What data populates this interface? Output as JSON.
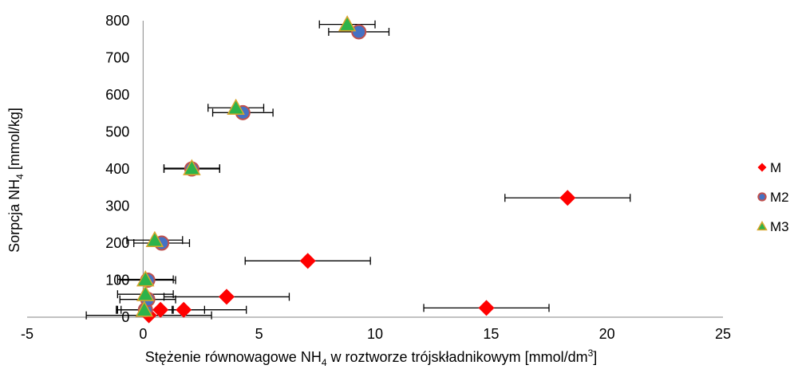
{
  "chart_data": {
    "type": "scatter",
    "title": "",
    "xlabel": "Stężenie równowagowe NH",
    "xlabel_sub": "4",
    "xlabel_tail": " w roztworze trójskładnikowym  [mmol/dm",
    "xlabel_sup": "3",
    "xlabel_end": "]",
    "ylabel": "Sorpcja NH",
    "ylabel_sub": "4",
    "ylabel_tail": " [mmol/kg]",
    "xlim": [
      -5,
      25
    ],
    "ylim": [
      0,
      800
    ],
    "x_ticks": [
      -5,
      0,
      5,
      10,
      15,
      20,
      25
    ],
    "y_ticks": [
      0,
      100,
      200,
      300,
      400,
      500,
      600,
      700,
      800
    ],
    "grid": false,
    "legend_position": "right",
    "series": [
      {
        "name": "M",
        "marker": "diamond",
        "color": "#FF0000",
        "points": [
          {
            "x": 0.25,
            "y": 5,
            "xerr": 2.7
          },
          {
            "x": 0.75,
            "y": 20,
            "xerr": 1.9
          },
          {
            "x": 1.75,
            "y": 20,
            "xerr": 2.7
          },
          {
            "x": 3.6,
            "y": 55,
            "xerr": 2.7
          },
          {
            "x": 7.1,
            "y": 152,
            "xerr": 2.7
          },
          {
            "x": 14.8,
            "y": 25,
            "xerr": 2.7
          },
          {
            "x": 18.3,
            "y": 322,
            "xerr": 2.7
          }
        ]
      },
      {
        "name": "M2",
        "marker": "circle",
        "color": "#4472C4",
        "edge_color": "#C0504D",
        "points": [
          {
            "x": 0.1,
            "y": 20,
            "xerr": 1.2
          },
          {
            "x": 0.2,
            "y": 48,
            "xerr": 1.2
          },
          {
            "x": 0.2,
            "y": 100,
            "xerr": 1.2
          },
          {
            "x": 0.8,
            "y": 200,
            "xerr": 1.2
          },
          {
            "x": 2.1,
            "y": 400,
            "xerr": 1.2
          },
          {
            "x": 4.3,
            "y": 552,
            "xerr": 1.3
          },
          {
            "x": 9.3,
            "y": 770,
            "xerr": 1.3
          }
        ]
      },
      {
        "name": "M3",
        "marker": "triangle",
        "color": "#2DB34A",
        "edge_color": "#D9A52C",
        "points": [
          {
            "x": 0.05,
            "y": 20,
            "xerr": 1.2
          },
          {
            "x": 0.1,
            "y": 62,
            "xerr": 1.2
          },
          {
            "x": 0.1,
            "y": 102,
            "xerr": 1.2
          },
          {
            "x": 0.5,
            "y": 208,
            "xerr": 1.2
          },
          {
            "x": 2.1,
            "y": 402,
            "xerr": 1.2
          },
          {
            "x": 4.0,
            "y": 565,
            "xerr": 1.2
          },
          {
            "x": 8.8,
            "y": 790,
            "xerr": 1.2
          }
        ]
      }
    ]
  }
}
